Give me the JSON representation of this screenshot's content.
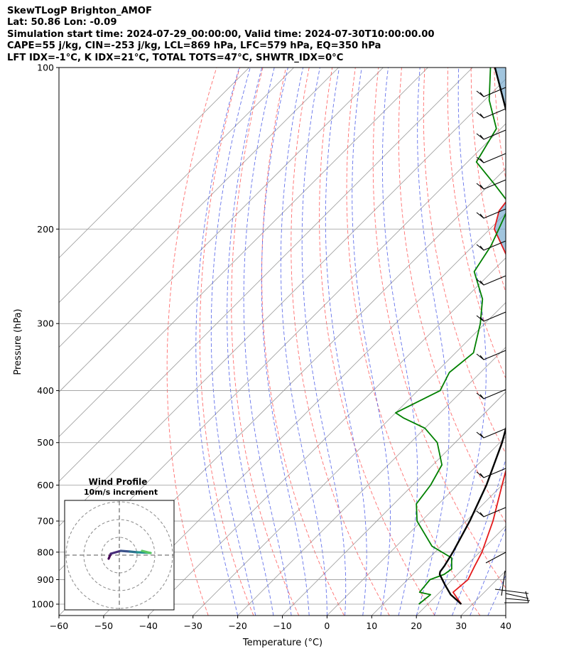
{
  "header": {
    "line1": "SkewTLogP Brighton_AMOF",
    "line2": "Lat: 50.86   Lon: -0.09",
    "line3": "Simulation start time: 2024-07-29_00:00:00, Valid time: 2024-07-30T10:00:00.00",
    "line4": "CAPE=55 j/kg, CIN=-253 j/kg, LCL=869 hPa, LFC=579 hPa, EQ=350 hPa",
    "line5": "LFT IDX=-1°C, K IDX=21°C, TOTAL TOTS=47°C, SHWTR_IDX=0°C"
  },
  "chart_data": {
    "type": "line",
    "subtype": "skew-T log-p",
    "xlabel": "Temperature (°C)",
    "ylabel": "Pressure (hPa)",
    "xlim": [
      -60,
      40
    ],
    "ylim": [
      1050,
      100
    ],
    "x_ticks": [
      "−60",
      "−50",
      "−40",
      "−30",
      "−20",
      "−10",
      "0",
      "10",
      "20",
      "30",
      "40"
    ],
    "x_tick_values": [
      -60,
      -50,
      -40,
      -30,
      -20,
      -10,
      0,
      10,
      20,
      30,
      40
    ],
    "y_ticks": [
      "100",
      "200",
      "300",
      "400",
      "500",
      "600",
      "700",
      "800",
      "900",
      "1000"
    ],
    "y_tick_values": [
      100,
      200,
      300,
      400,
      500,
      600,
      700,
      800,
      900,
      1000
    ],
    "series": [
      {
        "name": "Temperature",
        "color": "#e41a1c",
        "points": [
          [
            1000,
            27.5
          ],
          [
            950,
            23
          ],
          [
            900,
            23.5
          ],
          [
            850,
            22
          ],
          [
            800,
            20.5
          ],
          [
            700,
            16
          ],
          [
            600,
            10
          ],
          [
            500,
            3
          ],
          [
            400,
            -8
          ],
          [
            300,
            -20
          ],
          [
            250,
            -32
          ],
          [
            200,
            -49
          ],
          [
            185,
            -52
          ],
          [
            170,
            -53
          ],
          [
            150,
            -55
          ],
          [
            130,
            -60
          ],
          [
            115,
            -64
          ],
          [
            100,
            -70
          ]
        ]
      },
      {
        "name": "Dewpoint",
        "color": "#008000",
        "points": [
          [
            1000,
            18
          ],
          [
            960,
            18.5
          ],
          [
            950,
            15.5
          ],
          [
            900,
            15
          ],
          [
            880,
            17
          ],
          [
            860,
            17.5
          ],
          [
            820,
            15
          ],
          [
            780,
            8
          ],
          [
            700,
            -1
          ],
          [
            650,
            -5
          ],
          [
            600,
            -6
          ],
          [
            550,
            -8
          ],
          [
            500,
            -14
          ],
          [
            470,
            -20
          ],
          [
            450,
            -27
          ],
          [
            440,
            -30
          ],
          [
            400,
            -25
          ],
          [
            370,
            -27
          ],
          [
            340,
            -26
          ],
          [
            300,
            -31
          ],
          [
            270,
            -36
          ],
          [
            240,
            -44
          ],
          [
            215,
            -46
          ],
          [
            200,
            -48
          ],
          [
            180,
            -51
          ],
          [
            165,
            -59
          ],
          [
            150,
            -68
          ],
          [
            130,
            -71
          ],
          [
            115,
            -79
          ],
          [
            100,
            -86
          ]
        ]
      },
      {
        "name": "Parcel profile",
        "color": "#000000",
        "points": [
          [
            1000,
            27.5
          ],
          [
            960,
            23
          ],
          [
            920,
            19.5
          ],
          [
            880,
            16
          ],
          [
            870,
            15.5
          ],
          [
            850,
            15.2
          ],
          [
            800,
            14
          ],
          [
            700,
            10.8
          ],
          [
            600,
            6.5
          ],
          [
            500,
            0.5
          ],
          [
            450,
            -3.5
          ],
          [
            400,
            -8.5
          ],
          [
            350,
            -14.5
          ],
          [
            300,
            -22
          ],
          [
            250,
            -31
          ],
          [
            200,
            -43
          ],
          [
            150,
            -59
          ],
          [
            120,
            -73
          ],
          [
            100,
            -85
          ]
        ]
      }
    ],
    "shaded": {
      "name": "CAPE area",
      "color": "#6ea6cc",
      "between": [
        "Parcel profile",
        "Temperature"
      ],
      "p_range": [
        350,
        100
      ]
    },
    "reference_lines": [
      "isotherms",
      "dry adiabats",
      "moist adiabats",
      "mixing ratio lines"
    ],
    "wind_barbs": [
      {
        "p": 1000,
        "label": "surface barbs"
      },
      {
        "p": 900
      },
      {
        "p": 800
      },
      {
        "p": 700
      },
      {
        "p": 600
      },
      {
        "p": 500
      },
      {
        "p": 400
      },
      {
        "p": 300
      },
      {
        "p": 200
      },
      {
        "p": 100
      }
    ],
    "inset": {
      "title": "Wind Profile",
      "subtitle": "10m/s increment",
      "hodograph": [
        [
          -1.5,
          -0.5
        ],
        [
          -1.2,
          0.2
        ],
        [
          0.2,
          0.6
        ],
        [
          1.5,
          0.5
        ],
        [
          2.5,
          0.4
        ],
        [
          3.8,
          0.35
        ],
        [
          4.4,
          0.3
        ],
        [
          3.2,
          0.6
        ]
      ]
    }
  }
}
